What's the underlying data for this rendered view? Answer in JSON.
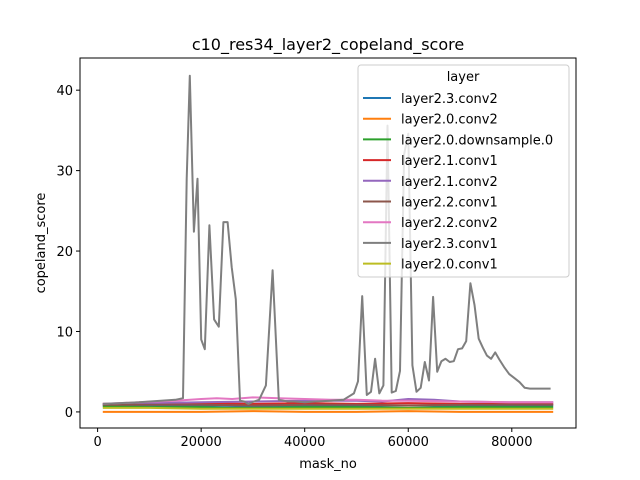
{
  "chart_data": {
    "type": "line",
    "title": "c10_res34_layer2_copeland_score",
    "xlabel": "mask_no",
    "ylabel": "copeland_score",
    "xlim": [
      -3400,
      92400
    ],
    "ylim": [
      -2,
      44
    ],
    "xticks": [
      0,
      20000,
      40000,
      60000,
      80000
    ],
    "yticks": [
      0,
      10,
      20,
      30,
      40
    ],
    "legend": {
      "title": "layer",
      "position": "upper right"
    },
    "series": [
      {
        "name": "layer2.3.conv2",
        "color": "#1f77b4",
        "x": [
          1000,
          10000,
          20000,
          30000,
          40000,
          50000,
          60000,
          70000,
          80000,
          88000
        ],
        "y": [
          0.8,
          0.8,
          0.8,
          0.7,
          0.8,
          0.8,
          0.8,
          0.8,
          0.8,
          0.8
        ]
      },
      {
        "name": "layer2.0.conv2",
        "color": "#ff7f0e",
        "x": [
          1000,
          10000,
          20000,
          30000,
          40000,
          50000,
          60000,
          70000,
          80000,
          88000
        ],
        "y": [
          0.0,
          0.0,
          0.0,
          0.1,
          0.0,
          0.0,
          0.1,
          0.0,
          0.0,
          0.0
        ]
      },
      {
        "name": "layer2.0.downsample.0",
        "color": "#2ca02c",
        "x": [
          1000,
          10000,
          20000,
          25000,
          30000,
          40000,
          50000,
          60000,
          70000,
          80000,
          88000
        ],
        "y": [
          0.7,
          0.6,
          0.6,
          0.5,
          0.5,
          0.6,
          0.6,
          0.5,
          0.6,
          0.6,
          0.6
        ]
      },
      {
        "name": "layer2.1.conv1",
        "color": "#d62728",
        "x": [
          1000,
          10000,
          20000,
          30000,
          40000,
          50000,
          60000,
          70000,
          80000,
          88000
        ],
        "y": [
          1.0,
          1.0,
          1.1,
          1.0,
          1.1,
          1.0,
          1.1,
          1.0,
          1.0,
          1.0
        ]
      },
      {
        "name": "layer2.1.conv2",
        "color": "#9467bd",
        "x": [
          1000,
          10000,
          20000,
          30000,
          40000,
          50000,
          55000,
          60000,
          65000,
          70000,
          80000,
          88000
        ],
        "y": [
          1.0,
          1.1,
          1.2,
          1.3,
          1.4,
          1.4,
          1.3,
          1.6,
          1.5,
          1.3,
          1.2,
          1.2
        ]
      },
      {
        "name": "layer2.2.conv1",
        "color": "#8c564b",
        "x": [
          1000,
          10000,
          20000,
          30000,
          40000,
          50000,
          60000,
          70000,
          80000,
          88000
        ],
        "y": [
          0.9,
          0.9,
          0.9,
          0.8,
          0.9,
          0.9,
          0.8,
          0.9,
          0.9,
          0.9
        ]
      },
      {
        "name": "layer2.2.conv2",
        "color": "#e377c2",
        "x": [
          1000,
          8000,
          15000,
          20000,
          23000,
          26000,
          30000,
          35000,
          40000,
          45000,
          50000,
          55000,
          60000,
          70000,
          80000,
          88000
        ],
        "y": [
          1.0,
          1.2,
          1.4,
          1.6,
          1.7,
          1.6,
          1.8,
          1.7,
          1.6,
          1.5,
          1.5,
          1.4,
          1.4,
          1.3,
          1.2,
          1.2
        ]
      },
      {
        "name": "layer2.3.conv1",
        "color": "#7f7f7f",
        "x": [
          1000,
          8000,
          15000,
          16500,
          17200,
          17800,
          18600,
          19300,
          20000,
          20700,
          21600,
          22500,
          23400,
          24300,
          25100,
          25900,
          26700,
          27500,
          28300,
          29100,
          30200,
          31200,
          32500,
          33800,
          35000,
          35900,
          36700,
          38000,
          40000,
          42000,
          45000,
          47500,
          49500,
          50300,
          51100,
          52000,
          52800,
          53600,
          54400,
          55200,
          56000,
          56800,
          57600,
          58400,
          59200,
          60000,
          60800,
          61600,
          62400,
          63200,
          64000,
          64800,
          65600,
          66400,
          67200,
          68000,
          68800,
          69600,
          70400,
          71200,
          72000,
          72800,
          73600,
          74400,
          75200,
          76000,
          76800,
          77600,
          78500,
          79500,
          80500,
          81500,
          82500,
          83500,
          84500,
          85500,
          86500,
          87500
        ],
        "y": [
          1.0,
          1.2,
          1.5,
          1.7,
          29.0,
          41.8,
          22.4,
          29.0,
          9.0,
          7.8,
          23.2,
          11.5,
          10.6,
          23.6,
          23.6,
          18.0,
          14.0,
          1.4,
          1.3,
          1.0,
          1.3,
          1.5,
          3.3,
          17.6,
          1.5,
          1.4,
          1.3,
          1.3,
          1.2,
          1.3,
          1.4,
          1.5,
          2.3,
          3.8,
          14.4,
          2.1,
          2.5,
          6.6,
          2.3,
          3.3,
          35.6,
          2.4,
          2.6,
          5.1,
          32.0,
          34.6,
          5.8,
          2.5,
          3.0,
          6.2,
          3.9,
          14.3,
          5.0,
          6.3,
          6.6,
          6.2,
          6.3,
          7.8,
          7.9,
          8.8,
          16.0,
          13.3,
          9.1,
          8.0,
          7.0,
          6.6,
          7.4,
          6.5,
          5.6,
          4.7,
          4.2,
          3.7,
          3.0,
          2.9,
          2.9,
          2.9,
          2.9,
          2.9
        ]
      },
      {
        "name": "layer2.0.conv1",
        "color": "#bcbd22",
        "x": [
          1000,
          10000,
          20000,
          30000,
          40000,
          50000,
          60000,
          70000,
          80000,
          88000
        ],
        "y": [
          0.5,
          0.5,
          0.4,
          0.4,
          0.4,
          0.4,
          0.4,
          0.4,
          0.4,
          0.4
        ]
      }
    ]
  }
}
